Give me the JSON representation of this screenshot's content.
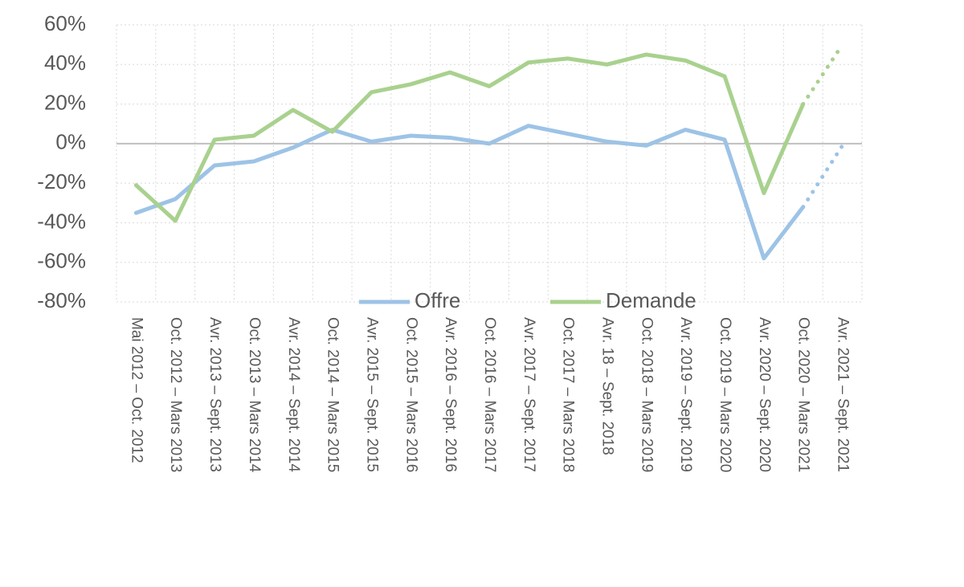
{
  "chart_data": {
    "type": "line",
    "categories": [
      "Mai 2012 – Oct. 2012",
      "Oct. 2012 – Mars 2013",
      "Avr. 2013 – Sept. 2013",
      "Oct. 2013 – Mars 2014",
      "Avr. 2014 – Sept. 2014",
      "Oct. 2014 – Mars 2015",
      "Avr. 2015 – Sept. 2015",
      "Oct. 2015 – Mars 2016",
      "Avr. 2016 – Sept. 2016",
      "Oct. 2016 – Mars 2017",
      "Avr. 2017 – Sept. 2017",
      "Oct. 2017 – Mars 2018",
      "Avr. 18 – Sept. 2018",
      "Oct. 2018 – Mars 2019",
      "Avr. 2019 – Sept. 2019",
      "Oct. 2019 – Mars 2020",
      "Avr. 2020 – Sept. 2020",
      "Oct. 2020 – Mars 2021",
      "Avr. 2021 – Sept. 2021"
    ],
    "series": [
      {
        "name": "Offre",
        "color": "#9dc3e6",
        "values": [
          -35,
          -28,
          -11,
          -9,
          -2,
          7,
          1,
          4,
          3,
          0,
          9,
          5,
          1,
          -1,
          7,
          2,
          -58,
          -32,
          -1
        ]
      },
      {
        "name": "Demande",
        "color": "#a9d18e",
        "values": [
          -21,
          -39,
          2,
          4,
          17,
          6,
          26,
          30,
          36,
          29,
          41,
          43,
          40,
          45,
          42,
          34,
          -25,
          20,
          50
        ]
      }
    ],
    "dotted_from_index": 17,
    "ylim": [
      -80,
      60
    ],
    "yticks": [
      {
        "value": -80,
        "label": "-80%"
      },
      {
        "value": -60,
        "label": "-60%"
      },
      {
        "value": -40,
        "label": "-40%"
      },
      {
        "value": -20,
        "label": "-20%"
      },
      {
        "value": 0,
        "label": "0%"
      },
      {
        "value": 20,
        "label": "20%"
      },
      {
        "value": 40,
        "label": "40%"
      },
      {
        "value": 60,
        "label": "60%"
      }
    ],
    "grid": true,
    "legend": "bottom"
  }
}
